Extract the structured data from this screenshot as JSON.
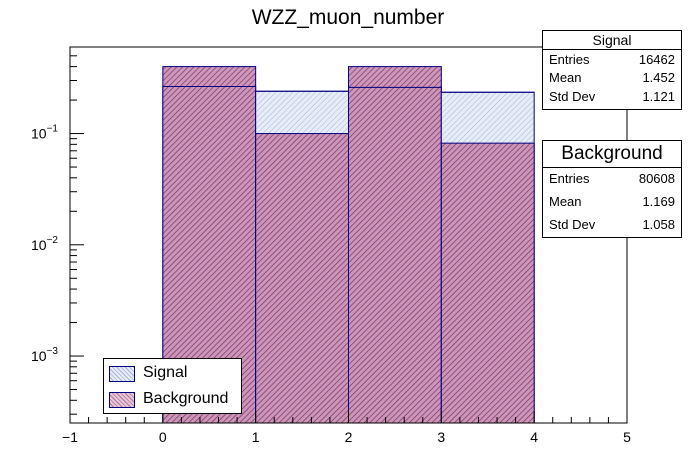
{
  "chart_data": {
    "type": "bar",
    "title": "WZZ_muon_number",
    "xlabel": "",
    "ylabel": "",
    "xlim": [
      -1,
      5
    ],
    "ylim": [
      0.00025,
      0.6
    ],
    "yscale": "log",
    "bin_edges": [
      0,
      1,
      2,
      3,
      4
    ],
    "x_tick_labels": [
      "−1",
      "0",
      "1",
      "2",
      "3",
      "4",
      "5"
    ],
    "x_ticks": [
      -1,
      0,
      1,
      2,
      3,
      4,
      5
    ],
    "y_tick_labels": [
      {
        "base": "10",
        "exp": "−1",
        "value": 0.1
      },
      {
        "base": "10",
        "exp": "−2",
        "value": 0.01
      },
      {
        "base": "10",
        "exp": "−3",
        "value": 0.001
      }
    ],
    "series": [
      {
        "name": "Signal",
        "values": [
          0.265,
          0.24,
          0.26,
          0.235
        ],
        "fill": "#d8e0f2",
        "line": "#000080"
      },
      {
        "name": "Background",
        "values": [
          0.4,
          0.1,
          0.4,
          0.082
        ],
        "fill": "#b57399",
        "line": "#000080"
      }
    ],
    "legend_position": "bottom-left"
  },
  "stats_boxes": [
    {
      "title": "Signal",
      "rows": [
        {
          "label": "Entries",
          "value": "16462"
        },
        {
          "label": "Mean",
          "value": "1.452"
        },
        {
          "label": "Std Dev",
          "value": "1.121"
        }
      ]
    },
    {
      "title": "Background",
      "rows": [
        {
          "label": "Entries",
          "value": "80608"
        },
        {
          "label": "Mean",
          "value": "1.169"
        },
        {
          "label": "Std Dev",
          "value": "1.058"
        }
      ]
    }
  ],
  "legend": [
    {
      "label": "Signal"
    },
    {
      "label": "Background"
    }
  ]
}
